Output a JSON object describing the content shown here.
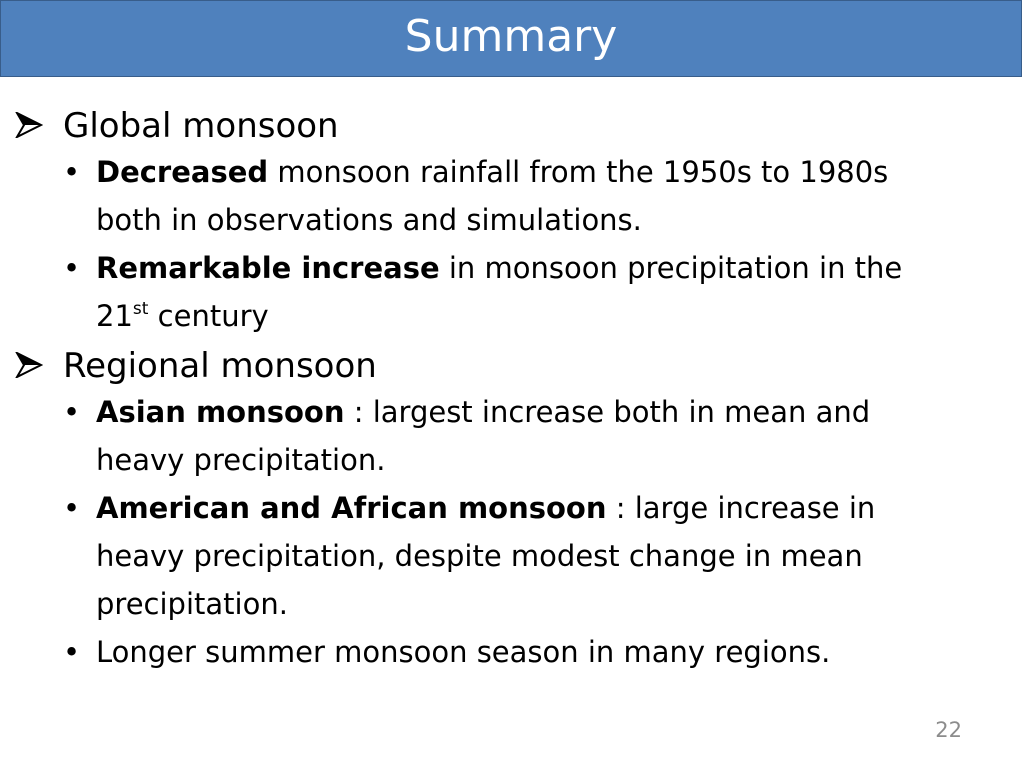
{
  "slide": {
    "title": "Summary",
    "page_number": "22",
    "colors": {
      "title_background": "#4f81bd",
      "title_border": "#385d8a",
      "title_text": "#ffffff",
      "page_number_text": "#8c8c8c"
    },
    "sections": [
      {
        "marker_icon": "arrow-bullet-icon",
        "heading": "Global monsoon",
        "bullets": [
          {
            "marker": "•",
            "line1_bold": "Decreased",
            "line1_rest": " monsoon rainfall from the 1950s to 1980s",
            "line2": "both in observations and simulations."
          },
          {
            "marker": "•",
            "line1_bold": "Remarkable increase",
            "line1_rest": " in monsoon precipitation in the",
            "line2_number": "21",
            "line2_sup": "st",
            "line2_rest": " century"
          }
        ]
      },
      {
        "marker_icon": "arrow-bullet-icon",
        "heading": "Regional monsoon",
        "bullets": [
          {
            "marker": "•",
            "line1_bold": "Asian monsoon",
            "line1_rest": " :  largest increase both in mean and",
            "line2": "heavy precipitation."
          },
          {
            "marker": "•",
            "line1_bold": "American and African monsoon",
            "line1_rest": " :  large increase in",
            "line2": "heavy precipitation, despite modest change in mean",
            "line3": "precipitation."
          },
          {
            "marker": "•",
            "line1": "Longer summer monsoon season in many regions."
          }
        ]
      }
    ]
  }
}
